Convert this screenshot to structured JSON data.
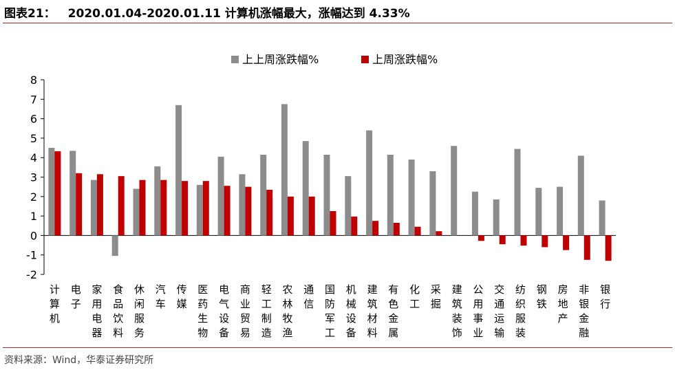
{
  "header": {
    "label": "图表21：",
    "title": "2020.01.04-2020.01.11 计算机涨幅最大，涨幅达到 4.33%"
  },
  "source": "资料来源：Wind，华泰证券研究所",
  "colors": {
    "prev": "#8c8c8c",
    "curr": "#c00000",
    "rule": "#b22222"
  },
  "chart_data": {
    "type": "bar",
    "ylim": [
      -2,
      8
    ],
    "yticks": [
      "8",
      "7",
      "6",
      "5",
      "4",
      "3",
      "2",
      "1",
      "0",
      "-1",
      "-2"
    ],
    "legend_position": "top-center",
    "categories": [
      "计算机",
      "电子",
      "家用电器",
      "食品饮料",
      "休闲服务",
      "汽车",
      "传媒",
      "医药生物",
      "电气设备",
      "商业贸易",
      "轻工制造",
      "农林牧渔",
      "通信",
      "国防军工",
      "机械设备",
      "建筑材料",
      "有色金属",
      "化工",
      "采掘",
      "建筑装饰",
      "公用事业",
      "交通运输",
      "纺织服装",
      "钢铁",
      "房地产",
      "非银金融",
      "银行"
    ],
    "series": [
      {
        "name": "上上周涨跌幅%",
        "values": [
          4.5,
          4.35,
          2.85,
          -1.05,
          2.4,
          3.55,
          6.7,
          2.6,
          4.05,
          3.15,
          4.15,
          6.75,
          4.85,
          4.15,
          3.05,
          5.4,
          4.15,
          3.9,
          3.3,
          4.6,
          2.25,
          1.85,
          4.45,
          2.45,
          2.5,
          4.1,
          1.8
        ]
      },
      {
        "name": "上周涨跌幅%",
        "values": [
          4.33,
          3.2,
          3.15,
          3.05,
          2.85,
          2.85,
          2.8,
          2.8,
          2.55,
          2.5,
          2.35,
          2.0,
          2.0,
          1.25,
          0.97,
          0.75,
          0.65,
          0.45,
          0.22,
          0.0,
          -0.28,
          -0.45,
          -0.52,
          -0.6,
          -0.75,
          -1.25,
          -1.3
        ]
      }
    ]
  }
}
